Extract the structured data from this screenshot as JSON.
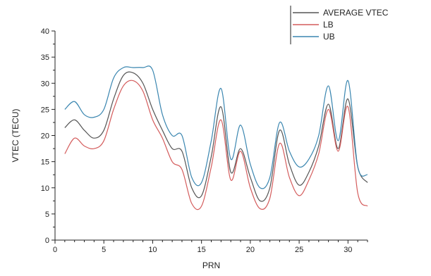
{
  "chart_data": {
    "type": "line",
    "title": "",
    "xlabel": "PRN",
    "ylabel": "VTEC (TECU)",
    "xlim": [
      0,
      32
    ],
    "ylim": [
      0,
      40
    ],
    "xticks": [
      0,
      5,
      10,
      15,
      20,
      25,
      30
    ],
    "yticks": [
      0,
      5,
      10,
      15,
      20,
      25,
      30,
      35,
      40
    ],
    "grid": false,
    "legend_position": "top-right",
    "series": [
      {
        "name": "AVERAGE VTEC",
        "color": "#555555",
        "x": [
          1,
          2,
          3,
          4,
          5,
          6,
          7,
          8,
          9,
          10,
          11,
          12,
          13,
          14,
          15,
          16,
          17,
          18,
          19,
          20,
          21,
          22,
          23,
          24,
          25,
          26,
          27,
          28,
          29,
          30,
          31,
          32
        ],
        "y": [
          21.5,
          23,
          21,
          19.5,
          21,
          27,
          31.5,
          32,
          30,
          25,
          21,
          17.5,
          17,
          10,
          8.5,
          16,
          25.5,
          13,
          17.5,
          12,
          7.5,
          10,
          21,
          14.5,
          10.5,
          13,
          18,
          26,
          17.5,
          27,
          14,
          11
        ]
      },
      {
        "name": "LB",
        "color": "#d45c5c",
        "x": [
          1,
          2,
          3,
          4,
          5,
          6,
          7,
          8,
          9,
          10,
          11,
          12,
          13,
          14,
          15,
          16,
          17,
          18,
          19,
          20,
          21,
          22,
          23,
          24,
          25,
          26,
          27,
          28,
          29,
          30,
          31,
          32
        ],
        "y": [
          16.5,
          19.5,
          18,
          17.5,
          19,
          25,
          29.5,
          30.5,
          28.5,
          23,
          19.5,
          15,
          13.5,
          7,
          6.5,
          14,
          23,
          11.5,
          17,
          10,
          6,
          8,
          18.5,
          12,
          8.5,
          11.5,
          16.5,
          25,
          17,
          25.5,
          9,
          6.5
        ]
      },
      {
        "name": "UB",
        "color": "#3a86b0",
        "x": [
          1,
          2,
          3,
          4,
          5,
          6,
          7,
          8,
          9,
          10,
          11,
          12,
          13,
          14,
          15,
          16,
          17,
          18,
          19,
          20,
          21,
          22,
          23,
          24,
          25,
          26,
          27,
          28,
          29,
          30,
          31,
          32
        ],
        "y": [
          25,
          26.5,
          24,
          23.5,
          25,
          31,
          33,
          33,
          33,
          32.5,
          24,
          20,
          20,
          12,
          11,
          19,
          29,
          15.5,
          22,
          14.5,
          10,
          12,
          22.5,
          17,
          14,
          15.5,
          20,
          29.5,
          19,
          30.5,
          14,
          12.5
        ]
      }
    ]
  }
}
